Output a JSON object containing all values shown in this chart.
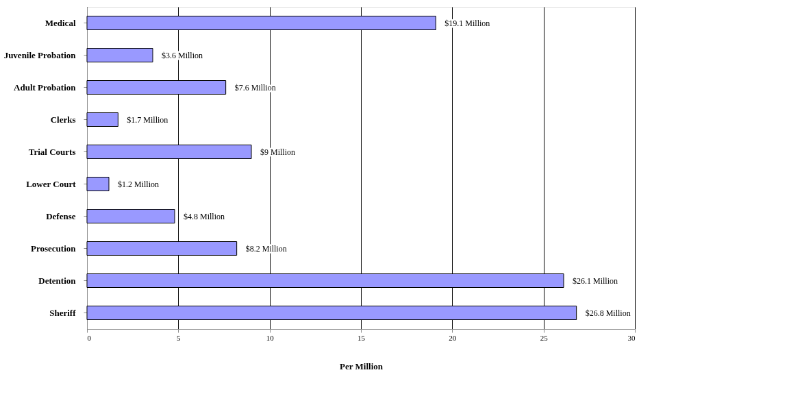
{
  "chart_data": {
    "type": "bar",
    "orientation": "horizontal",
    "xlabel": "Per Million",
    "categories": [
      "Medical",
      "Juvenile Probation",
      "Adult Probation",
      "Clerks",
      "Trial Courts",
      "Lower Court",
      "Defense",
      "Prosecution",
      "Detention",
      "Sheriff"
    ],
    "values": [
      19.1,
      3.6,
      7.6,
      1.7,
      9,
      1.2,
      4.8,
      8.2,
      26.1,
      26.8
    ],
    "value_labels": [
      "$19.1 Million",
      "$3.6 Million",
      "$7.6 Million",
      "$1.7 Million",
      "$9 Million",
      "$1.2 Million",
      "$4.8 Million",
      "$8.2 Million",
      "$26.1 Million",
      "$26.8 Million"
    ],
    "color": "#9999ff",
    "xlim": [
      0,
      30
    ],
    "xticks": [
      0,
      5,
      10,
      15,
      20,
      25,
      30
    ],
    "grid": "x"
  }
}
